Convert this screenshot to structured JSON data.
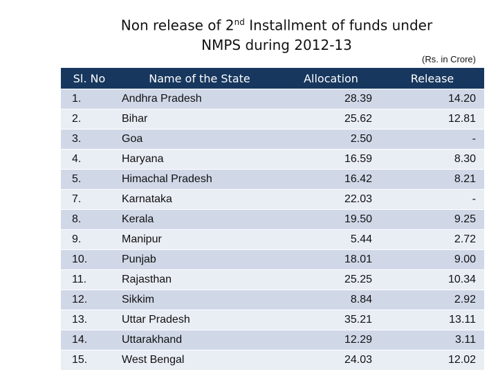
{
  "header": {
    "title": {
      "part1": "Non release  of 2",
      "superscript": "nd",
      "part2": " Installment  of funds under",
      "line2": "NMPS during 2012-13"
    },
    "unit_note": "(Rs. in Crore)"
  },
  "table": {
    "columns": [
      "Sl. No",
      "Name of the State",
      "Allocation",
      "Release"
    ],
    "rows": [
      [
        "1.",
        "Andhra Pradesh",
        "28.39",
        "14.20"
      ],
      [
        "2.",
        "Bihar",
        "25.62",
        "12.81"
      ],
      [
        "3.",
        "Goa",
        "2.50",
        "-"
      ],
      [
        "4.",
        "Haryana",
        "16.59",
        "8.30"
      ],
      [
        "5.",
        "Himachal Pradesh",
        "16.42",
        "8.21"
      ],
      [
        "7.",
        "Karnataka",
        "22.03",
        "-"
      ],
      [
        "8.",
        "Kerala",
        "19.50",
        "9.25"
      ],
      [
        "9.",
        "Manipur",
        "5.44",
        "2.72"
      ],
      [
        "10.",
        "Punjab",
        "18.01",
        "9.00"
      ],
      [
        "11.",
        "Rajasthan",
        "25.25",
        "10.34"
      ],
      [
        "12.",
        "Sikkim",
        "8.84",
        "2.92"
      ],
      [
        "13.",
        "Uttar Pradesh",
        "35.21",
        "13.11"
      ],
      [
        "14.",
        "Uttarakhand",
        "12.29",
        "3.11"
      ],
      [
        "15.",
        "West Bengal",
        "24.03",
        "12.02"
      ]
    ]
  }
}
